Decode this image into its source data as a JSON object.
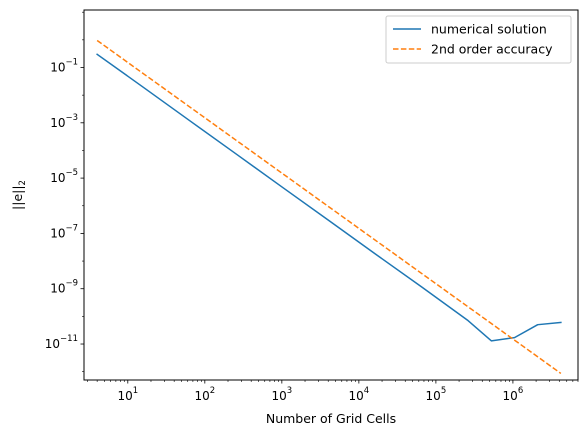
{
  "chart_data": {
    "type": "line",
    "title": "",
    "xlabel": "Number of Grid Cells",
    "ylabel": "||e||",
    "ylabel_sub": "2",
    "xscale": "log",
    "yscale": "log",
    "xlim": [
      2.7,
      7000000
    ],
    "ylim": [
      5e-13,
      12
    ],
    "grid": false,
    "legend_position": "top-right",
    "x_ticks": [
      {
        "base": "10",
        "exp": "1",
        "value": 10
      },
      {
        "base": "10",
        "exp": "2",
        "value": 100
      },
      {
        "base": "10",
        "exp": "3",
        "value": 1000
      },
      {
        "base": "10",
        "exp": "4",
        "value": 10000
      },
      {
        "base": "10",
        "exp": "5",
        "value": 100000
      },
      {
        "base": "10",
        "exp": "6",
        "value": 1000000
      }
    ],
    "y_ticks": [
      {
        "base": "10",
        "exp": "−1",
        "value": 0.1
      },
      {
        "base": "10",
        "exp": "−3",
        "value": 0.001
      },
      {
        "base": "10",
        "exp": "−5",
        "value": 1e-05
      },
      {
        "base": "10",
        "exp": "−7",
        "value": 1e-07
      },
      {
        "base": "10",
        "exp": "−9",
        "value": 1e-09
      },
      {
        "base": "10",
        "exp": "−11",
        "value": 1e-11
      }
    ],
    "series": [
      {
        "name": "numerical solution",
        "color": "#1f77b4",
        "style": "solid",
        "x": [
          4,
          16,
          64,
          256,
          1024,
          4096,
          16384,
          65536,
          262144,
          524288,
          1048576,
          2097152,
          4194304
        ],
        "y": [
          0.3,
          0.019,
          0.00118,
          7.4e-05,
          4.6e-06,
          2.9e-07,
          1.8e-08,
          1.15e-09,
          7e-11,
          1.3e-11,
          1.7e-11,
          5e-11,
          6e-11
        ]
      },
      {
        "name": "2nd order accuracy",
        "color": "#ff7f0e",
        "style": "dashed",
        "x": [
          4,
          4194304
        ],
        "y": [
          0.95,
          8.64e-13
        ]
      }
    ]
  }
}
